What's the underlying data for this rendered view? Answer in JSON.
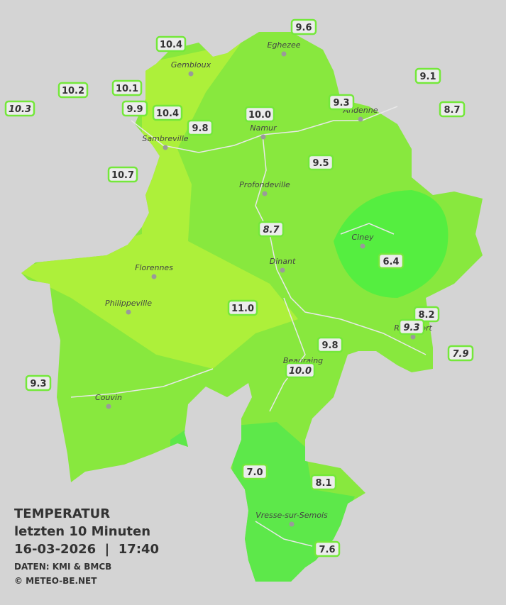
{
  "legend": {
    "title": "TEMPERATUR",
    "subtitle": "letzten 10 Minuten",
    "datetime": "16-03-2026  |  17:40",
    "source": "DATEN: KMI & BMCB",
    "copyright": "© METEO-BE.NET"
  },
  "towns": [
    "Eghezee",
    "Gembloux",
    "Andenne",
    "Namur",
    "Sambreville",
    "Profondeville",
    "Ciney",
    "Dinant",
    "Florennes",
    "Philippeville",
    "Rochefort",
    "Beauraing",
    "Couvin",
    "Vresse-sur-Semois"
  ],
  "stations": [
    {
      "value": "9.6"
    },
    {
      "value": "10.4"
    },
    {
      "value": "9.1"
    },
    {
      "value": "10.2"
    },
    {
      "value": "10.1"
    },
    {
      "value": "10.3",
      "italic": true
    },
    {
      "value": "9.9"
    },
    {
      "value": "10.4"
    },
    {
      "value": "9.3"
    },
    {
      "value": "8.7"
    },
    {
      "value": "10.0"
    },
    {
      "value": "9.8"
    },
    {
      "value": "9.5"
    },
    {
      "value": "10.7"
    },
    {
      "value": "8.7",
      "italic": true
    },
    {
      "value": "6.4"
    },
    {
      "value": "11.0"
    },
    {
      "value": "8.2"
    },
    {
      "value": "9.3",
      "italic": true
    },
    {
      "value": "9.8"
    },
    {
      "value": "7.9",
      "italic": true
    },
    {
      "value": "10.0",
      "italic": true
    },
    {
      "value": "9.3"
    },
    {
      "value": "7.0"
    },
    {
      "value": "8.1"
    },
    {
      "value": "7.6"
    }
  ]
}
